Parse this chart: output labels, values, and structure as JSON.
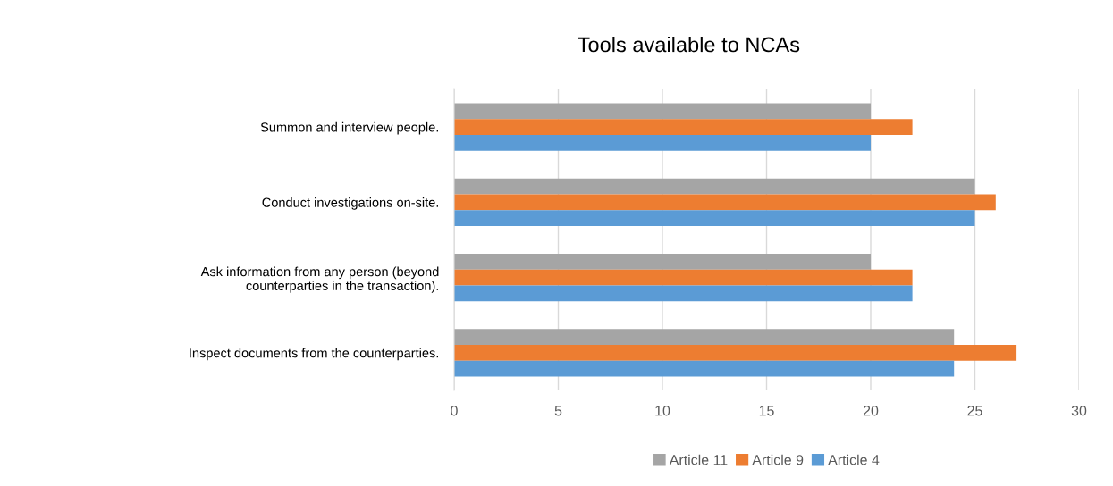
{
  "chart_data": {
    "type": "bar",
    "orientation": "horizontal",
    "title": "Tools available to NCAs",
    "categories": [
      "Summon and interview people.",
      "Conduct investigations on-site.",
      "Ask information from any person (beyond\ncounterparties in the transaction).",
      "Inspect documents from the counterparties."
    ],
    "series": [
      {
        "name": "Article 11",
        "color": "#a5a5a5",
        "values": [
          20,
          25,
          20,
          24
        ]
      },
      {
        "name": "Article 9",
        "color": "#ed7d31",
        "values": [
          22,
          26,
          22,
          27
        ]
      },
      {
        "name": "Article 4",
        "color": "#5b9bd5",
        "values": [
          20,
          25,
          22,
          24
        ]
      }
    ],
    "xlim": [
      0,
      30
    ],
    "xticks": [
      0,
      5,
      10,
      15,
      20,
      25,
      30
    ],
    "grid": "x",
    "legend": "bottom"
  }
}
